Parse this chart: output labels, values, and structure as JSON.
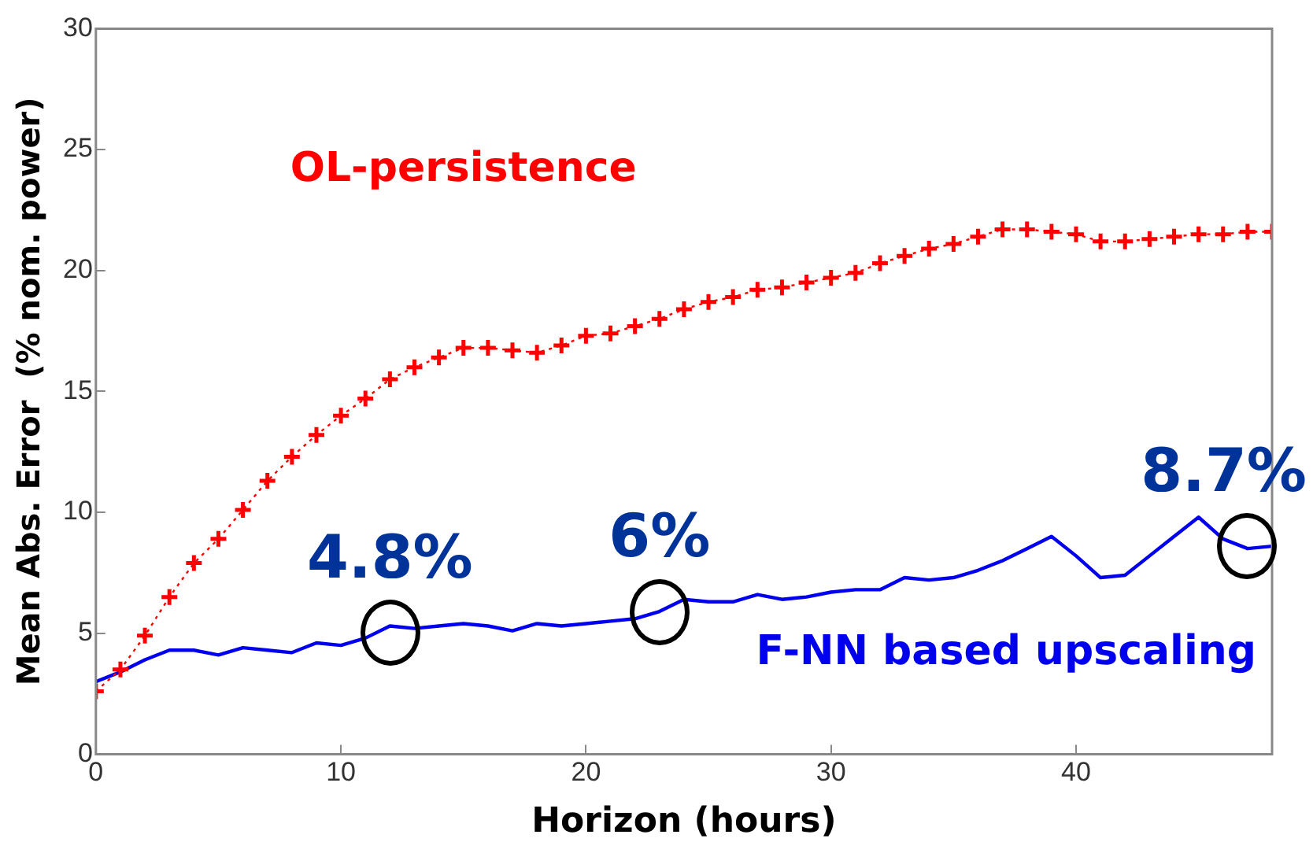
{
  "chart_data": {
    "type": "line",
    "xlabel": "Horizon (hours)",
    "ylabel": "Mean Abs. Error  (% nom. power)",
    "xlim": [
      0,
      48
    ],
    "xticks": [
      0,
      10,
      20,
      30,
      40
    ],
    "ylim": [
      0,
      30
    ],
    "yticks": [
      0,
      5,
      10,
      15,
      20,
      25,
      30
    ],
    "grid": false,
    "legend": false,
    "x": [
      0,
      1,
      2,
      3,
      4,
      5,
      6,
      7,
      8,
      9,
      10,
      11,
      12,
      13,
      14,
      15,
      16,
      17,
      18,
      19,
      20,
      21,
      22,
      23,
      24,
      25,
      26,
      27,
      28,
      29,
      30,
      31,
      32,
      33,
      34,
      35,
      36,
      37,
      38,
      39,
      40,
      41,
      42,
      43,
      44,
      45,
      46,
      47,
      48
    ],
    "series": [
      {
        "name": "OL-persistence",
        "color": "#ff0000",
        "marker": "cross",
        "line_style": "dotted",
        "values": [
          2.6,
          3.5,
          4.9,
          6.5,
          7.9,
          8.9,
          10.1,
          11.3,
          12.3,
          13.2,
          14.0,
          14.7,
          15.5,
          16.0,
          16.4,
          16.8,
          16.8,
          16.7,
          16.6,
          16.9,
          17.3,
          17.4,
          17.7,
          18.0,
          18.4,
          18.7,
          18.9,
          19.2,
          19.3,
          19.5,
          19.7,
          19.9,
          20.3,
          20.6,
          20.9,
          21.1,
          21.4,
          21.7,
          21.7,
          21.6,
          21.5,
          21.2,
          21.2,
          21.3,
          21.4,
          21.5,
          21.5,
          21.6,
          21.6
        ]
      },
      {
        "name": "F-NN based upscaling",
        "color": "#0000ee",
        "marker": "none",
        "line_style": "solid",
        "values": [
          3.0,
          3.4,
          3.9,
          4.3,
          4.3,
          4.1,
          4.4,
          4.3,
          4.2,
          4.6,
          4.5,
          4.8,
          5.3,
          5.2,
          5.3,
          5.4,
          5.3,
          5.1,
          5.4,
          5.3,
          5.4,
          5.5,
          5.6,
          5.9,
          6.4,
          6.3,
          6.3,
          6.6,
          6.4,
          6.5,
          6.7,
          6.8,
          6.8,
          7.3,
          7.2,
          7.3,
          7.6,
          8.0,
          8.5,
          9.0,
          8.2,
          7.3,
          7.4,
          8.2,
          9.0,
          9.8,
          8.9,
          8.5,
          8.6
        ]
      }
    ],
    "annotations": [
      {
        "text": "4.8%",
        "x": 12,
        "y": 5.0
      },
      {
        "text": "6%",
        "x": 23,
        "y": 5.9
      },
      {
        "text": "8.7%",
        "x": 47,
        "y": 8.6
      }
    ]
  }
}
